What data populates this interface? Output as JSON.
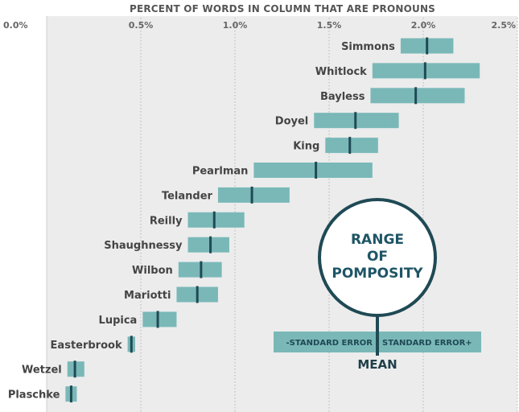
{
  "chart_data": {
    "type": "range",
    "title": "PERCENT OF WORDS IN COLUMN THAT ARE PRONOUNS",
    "xlim": [
      0,
      2.5
    ],
    "x_ticks": [
      0,
      0.5,
      1.0,
      1.5,
      2.0,
      2.5
    ],
    "x_tick_labels": [
      "0.0%",
      "0.5%",
      "1.0%",
      "1.5%",
      "2.0%",
      "2.5%"
    ],
    "grid": true,
    "series": [
      {
        "name": "Simmons",
        "low": 1.88,
        "mean": 2.02,
        "high": 2.16
      },
      {
        "name": "Whitlock",
        "low": 1.73,
        "mean": 2.01,
        "high": 2.3
      },
      {
        "name": "Bayless",
        "low": 1.72,
        "mean": 1.96,
        "high": 2.22
      },
      {
        "name": "Doyel",
        "low": 1.42,
        "mean": 1.64,
        "high": 1.87
      },
      {
        "name": "King",
        "low": 1.48,
        "mean": 1.61,
        "high": 1.76
      },
      {
        "name": "Pearlman",
        "low": 1.1,
        "mean": 1.43,
        "high": 1.73
      },
      {
        "name": "Telander",
        "low": 0.91,
        "mean": 1.09,
        "high": 1.29
      },
      {
        "name": "Reilly",
        "low": 0.75,
        "mean": 0.89,
        "high": 1.05
      },
      {
        "name": "Shaughnessy",
        "low": 0.75,
        "mean": 0.87,
        "high": 0.97
      },
      {
        "name": "Wilbon",
        "low": 0.7,
        "mean": 0.82,
        "high": 0.93
      },
      {
        "name": "Mariotti",
        "low": 0.69,
        "mean": 0.8,
        "high": 0.91
      },
      {
        "name": "Lupica",
        "low": 0.51,
        "mean": 0.59,
        "high": 0.69
      },
      {
        "name": "Easterbrook",
        "low": 0.43,
        "mean": 0.45,
        "high": 0.47
      },
      {
        "name": "Wetzel",
        "low": 0.11,
        "mean": 0.15,
        "high": 0.2
      },
      {
        "name": "Plaschke",
        "low": 0.1,
        "mean": 0.13,
        "high": 0.16
      }
    ]
  },
  "legend": {
    "circle_line1": "RANGE",
    "circle_line2": "OF",
    "circle_line3": "POMPOSITY",
    "left_label": "-STANDARD ERROR",
    "right_label": "STANDARD ERROR+",
    "mean_label": "MEAN"
  },
  "colors": {
    "background": "#ececec",
    "bar": "#7ab8b8",
    "mean_marker": "#1f4a55",
    "grid": "#b5b5b5",
    "circle_stroke": "#1f4a55"
  }
}
